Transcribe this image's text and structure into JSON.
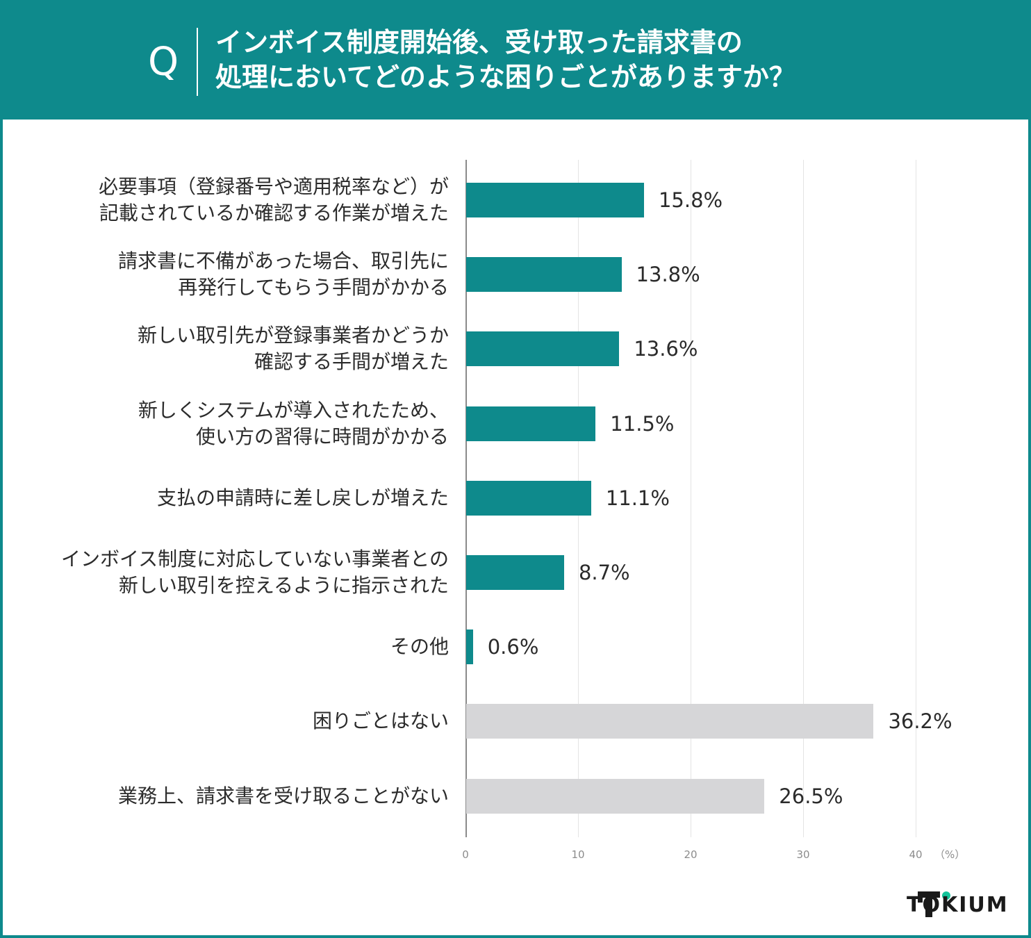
{
  "header": {
    "q_mark": "Q",
    "title_lines": [
      "インボイス制度開始後、受け取った請求書の",
      "処理においてどのような困りごとがありますか？"
    ]
  },
  "colors": {
    "accent": "#0e8a8c",
    "neutral_bar": "#d6d6d8"
  },
  "chart_data": {
    "type": "bar",
    "orientation": "horizontal",
    "categories": [
      [
        "必要事項（登録番号や適用税率など）が",
        "記載されているか確認する作業が増えた"
      ],
      [
        "請求書に不備があった場合、取引先に",
        "再発行してもらう手間がかかる"
      ],
      [
        "新しい取引先が登録事業者かどうか",
        "確認する手間が増えた"
      ],
      [
        "新しくシステムが導入されたため、",
        "使い方の習得に時間がかかる"
      ],
      [
        "支払の申請時に差し戻しが増えた"
      ],
      [
        "インボイス制度に対応していない事業者との",
        "新しい取引を控えるように指示された"
      ],
      [
        "その他"
      ],
      [
        "困りごとはない"
      ],
      [
        "業務上、請求書を受け取ることがない"
      ]
    ],
    "values": [
      15.8,
      13.8,
      13.6,
      11.5,
      11.1,
      8.7,
      0.6,
      36.2,
      26.5
    ],
    "value_labels": [
      "15.8%",
      "13.8%",
      "13.6%",
      "11.5%",
      "11.1%",
      "8.7%",
      "0.6%",
      "36.2%",
      "26.5%"
    ],
    "bar_colors": [
      "#0e8a8c",
      "#0e8a8c",
      "#0e8a8c",
      "#0e8a8c",
      "#0e8a8c",
      "#0e8a8c",
      "#0e8a8c",
      "#d6d6d8",
      "#d6d6d8"
    ],
    "xlim": [
      0,
      40
    ],
    "xticks": [
      0,
      10,
      20,
      30,
      40
    ],
    "xtick_labels": [
      "0",
      "10",
      "20",
      "30",
      "40"
    ],
    "x_unit_label": "（%）",
    "grid": true
  },
  "brand": {
    "logo_text": "TOKIUM",
    "logo_color": "#1a1a1a",
    "logo_accent": "#12c39a"
  }
}
